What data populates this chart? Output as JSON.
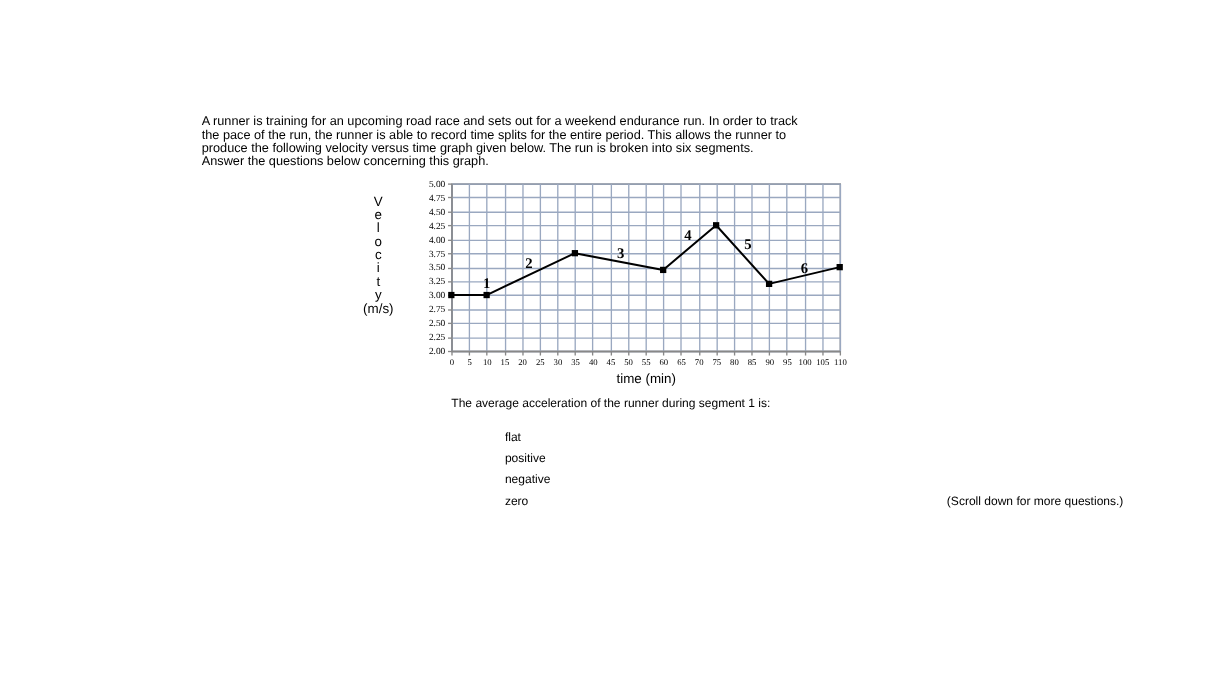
{
  "chart_data": {
    "type": "line",
    "title": [
      "A runner is training for an upcoming road race and sets out for a weekend endurance run. In order to track",
      "the pace of the run, the runner is able to record time splits for the entire period. This allows the runner to",
      "produce the following velocity versus time graph given below. The run is broken into six segments.",
      "Answer the questions below concerning this graph."
    ],
    "xlabel": "time (min)",
    "ylabel": "Velocity (m/s)",
    "x": [
      0,
      10,
      35,
      60,
      75,
      90,
      110
    ],
    "series": [
      {
        "color": "#000000",
        "values": [
          3.0,
          3.0,
          3.75,
          3.45,
          4.25,
          3.2,
          3.5
        ]
      }
    ],
    "xlim": [
      0,
      110
    ],
    "xticks": [
      0,
      5,
      10,
      15,
      20,
      25,
      30,
      35,
      40,
      45,
      50,
      55,
      60,
      65,
      70,
      75,
      80,
      85,
      90,
      95,
      100,
      105,
      110
    ],
    "ylim": [
      2,
      5
    ],
    "yticks": [
      {
        "value": 2,
        "label": "2.00"
      },
      {
        "value": 2.25,
        "label": "2.25"
      },
      {
        "value": 2.5,
        "label": "2.50"
      },
      {
        "value": 2.75,
        "label": "2.75"
      },
      {
        "value": 3,
        "label": "3.00"
      },
      {
        "value": 3.25,
        "label": "3.25"
      },
      {
        "value": 3.5,
        "label": "3.50"
      },
      {
        "value": 3.75,
        "label": "3.75"
      },
      {
        "value": 4,
        "label": "4.00"
      },
      {
        "value": 4.25,
        "label": "4.25"
      },
      {
        "value": 4.5,
        "label": "4.50"
      },
      {
        "value": 4.75,
        "label": "4.75"
      },
      {
        "value": 5,
        "label": "5.00"
      }
    ],
    "grid": true,
    "marker": "square",
    "line_style": "solid",
    "annotations": [
      {
        "text": "1",
        "x": 10,
        "y": 3.2
      },
      {
        "text": "2",
        "x": 22,
        "y": 3.55
      },
      {
        "text": "3",
        "x": 48,
        "y": 3.74
      },
      {
        "text": "4",
        "x": 67,
        "y": 4.05
      },
      {
        "text": "5",
        "x": 84,
        "y": 3.9
      },
      {
        "text": "6",
        "x": 100,
        "y": 3.47
      },
      "The average acceleration of the runner during segment 1 is:",
      "flat",
      "positive",
      "negative",
      "zero",
      "(Scroll down for more questions.)"
    ]
  }
}
